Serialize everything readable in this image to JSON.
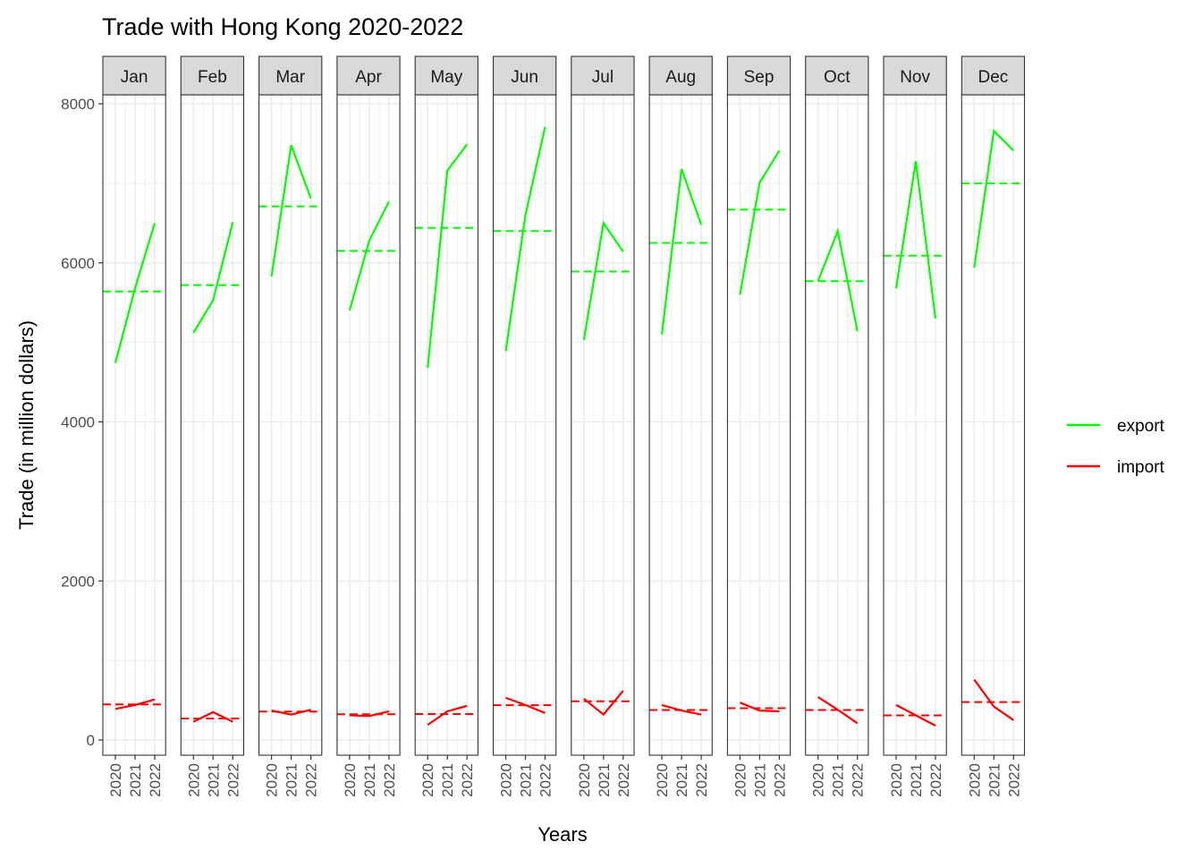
{
  "chart_data": {
    "type": "line",
    "title": "Trade with Hong Kong 2020-2022",
    "xlabel": "Years",
    "ylabel": "Trade (in million dollars)",
    "facet_by": "month",
    "facets": [
      "Jan",
      "Feb",
      "Mar",
      "Apr",
      "May",
      "Jun",
      "Jul",
      "Aug",
      "Sep",
      "Oct",
      "Nov",
      "Dec"
    ],
    "x": [
      "2020",
      "2021",
      "2022"
    ],
    "y_ticks": [
      0,
      2000,
      4000,
      6000,
      8000
    ],
    "ylim": [
      -190,
      8120
    ],
    "grid": true,
    "legend_position": "right",
    "reference_lines": "dashed line at the mean of each series per month",
    "series": [
      {
        "name": "export",
        "color": "#00FF00",
        "values": [
          [
            4740,
            5680,
            6500
          ],
          [
            5120,
            5530,
            6510
          ],
          [
            5830,
            7480,
            6810
          ],
          [
            5400,
            6280,
            6770
          ],
          [
            4680,
            7160,
            7490
          ],
          [
            4890,
            6600,
            7710
          ],
          [
            5030,
            6500,
            6140
          ],
          [
            5100,
            7180,
            6480
          ],
          [
            5600,
            7010,
            7410
          ],
          [
            5770,
            6400,
            5140
          ],
          [
            5680,
            7280,
            5300
          ],
          [
            5940,
            7660,
            7410
          ]
        ],
        "means": [
          5640,
          5720,
          6710,
          6150,
          6440,
          6400,
          5890,
          6250,
          6670,
          5770,
          6090,
          7000
        ]
      },
      {
        "name": "import",
        "color": "#FF0000",
        "values": [
          [
            390,
            440,
            510
          ],
          [
            230,
            350,
            230
          ],
          [
            370,
            320,
            380
          ],
          [
            310,
            300,
            360
          ],
          [
            190,
            360,
            430
          ],
          [
            530,
            440,
            340
          ],
          [
            520,
            320,
            620
          ],
          [
            440,
            370,
            320
          ],
          [
            470,
            370,
            360
          ],
          [
            540,
            380,
            210
          ],
          [
            440,
            310,
            180
          ],
          [
            760,
            420,
            250
          ]
        ],
        "means": [
          447,
          270,
          357,
          323,
          327,
          437,
          487,
          377,
          400,
          377,
          310,
          477
        ]
      }
    ]
  }
}
